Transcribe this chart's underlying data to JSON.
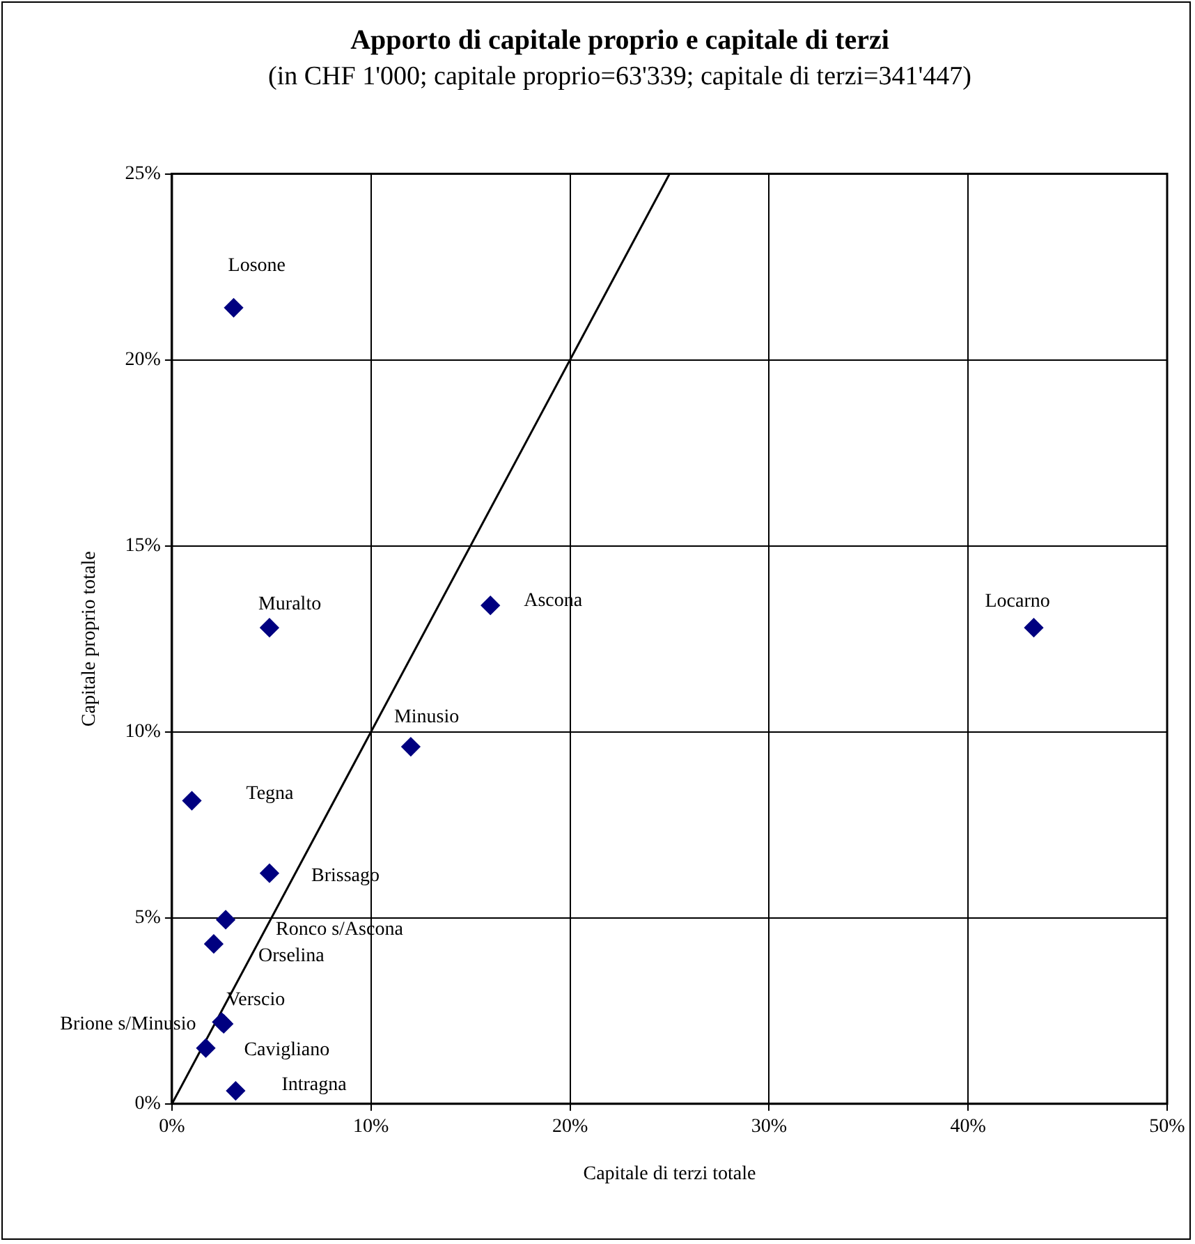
{
  "chart_data": {
    "type": "scatter",
    "title": "Apporto di capitale proprio e capitale di terzi",
    "subtitle": "(in CHF 1'000; capitale proprio=63'339; capitale di terzi=341'447)",
    "xlabel": "Capitale di terzi totale",
    "ylabel": "Capitale proprio totale",
    "series": [
      {
        "type": "scatter",
        "color": "#000080",
        "marker": "diamond",
        "x": [
          3.1,
          4.9,
          16.0,
          43.3,
          12.0,
          1.0,
          4.9,
          2.7,
          2.1,
          2.6,
          1.7,
          2.5,
          3.2
        ],
        "values": [
          21.4,
          12.8,
          13.4,
          12.8,
          9.6,
          8.15,
          6.2,
          4.95,
          4.3,
          2.15,
          1.5,
          2.2,
          0.35
        ]
      },
      {
        "type": "line",
        "color": "#000000",
        "marker": "none",
        "line_style": "solid",
        "x": [
          0,
          25
        ],
        "values": [
          0,
          25
        ]
      }
    ],
    "xlim": [
      0,
      50
    ],
    "xticks": [
      {
        "value": 0,
        "label": "0%"
      },
      {
        "value": 10,
        "label": "10%"
      },
      {
        "value": 20,
        "label": "20%"
      },
      {
        "value": 30,
        "label": "30%"
      },
      {
        "value": 40,
        "label": "40%"
      },
      {
        "value": 50,
        "label": "50%"
      }
    ],
    "ylim": [
      0,
      25
    ],
    "yticks": [
      {
        "value": 0,
        "label": "0%"
      },
      {
        "value": 5,
        "label": "5%"
      },
      {
        "value": 10,
        "label": "10%"
      },
      {
        "value": 15,
        "label": "15%"
      },
      {
        "value": 20,
        "label": "20%"
      },
      {
        "value": 25,
        "label": "25%"
      }
    ],
    "grid": true,
    "legend": false,
    "annotations": [
      {
        "text": "Losone",
        "x": 3.1,
        "y": 21.4
      },
      {
        "text": "Muralto",
        "x": 4.9,
        "y": 12.8
      },
      {
        "text": "Ascona",
        "x": 16.0,
        "y": 13.4
      },
      {
        "text": "Locarno",
        "x": 43.3,
        "y": 12.8
      },
      {
        "text": "Minusio",
        "x": 12.0,
        "y": 9.6
      },
      {
        "text": "Tegna",
        "x": 1.0,
        "y": 8.15
      },
      {
        "text": "Brissago",
        "x": 4.9,
        "y": 6.2
      },
      {
        "text": "Ronco s/Ascona",
        "x": 2.7,
        "y": 4.95
      },
      {
        "text": "Orselina",
        "x": 2.1,
        "y": 4.3
      },
      {
        "text": "Verscio",
        "x": 2.6,
        "y": 2.15
      },
      {
        "text": "Brione s/Minusio",
        "x": 1.7,
        "y": 1.5
      },
      {
        "text": "Cavigliano",
        "x": 2.5,
        "y": 2.2
      },
      {
        "text": "Intragna",
        "x": 3.2,
        "y": 0.35
      }
    ]
  }
}
